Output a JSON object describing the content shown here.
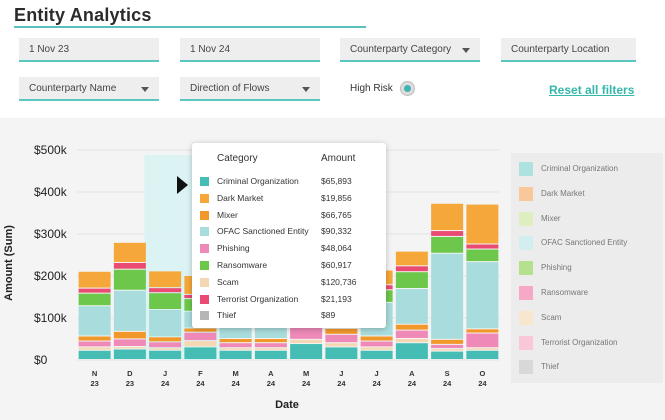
{
  "page": {
    "title": "Entity Analytics"
  },
  "filters": {
    "start_date": "1 Nov 23",
    "end_date": "1 Nov 24",
    "counterparty_category": "Counterparty Category",
    "counterparty_location": "Counterparty Location",
    "counterparty_name": "Counterparty Name",
    "direction_of_flows": "Direction of Flows",
    "high_risk_label": "High Risk",
    "high_risk_on": true,
    "reset_label": "Reset all filters"
  },
  "colors": {
    "accent": "#5cc6c0",
    "reset_link": "#35b7aa",
    "Criminal Organization": "#45bdb5",
    "Dark Market": "#f5a73a",
    "Mixer": "#f2972a",
    "OFAC Sanctioned Entity": "#a9dcdc",
    "Phishing": "#ee89b8",
    "Ransomware": "#6cc74a",
    "Scam": "#f5d7b3",
    "Terrorist Organization": "#ea4b72",
    "Thief": "#b5b5b5"
  },
  "tooltip": {
    "category_header": "Category",
    "amount_header": "Amount",
    "rows": [
      {
        "category": "Criminal Organization",
        "amount": "$65,893"
      },
      {
        "category": "Dark Market",
        "amount": "$19,856"
      },
      {
        "category": "Mixer",
        "amount": "$66,765"
      },
      {
        "category": "OFAC Sanctioned Entity",
        "amount": "$90,332"
      },
      {
        "category": "Phishing",
        "amount": "$48,064"
      },
      {
        "category": "Ransomware",
        "amount": "$60,917"
      },
      {
        "category": "Scam",
        "amount": "$120,736"
      },
      {
        "category": "Terrorist Organization",
        "amount": "$21,193"
      },
      {
        "category": "Thief",
        "amount": "$89"
      }
    ]
  },
  "legend": {
    "items": [
      {
        "label": "Criminal Organization",
        "color": "#aee2df"
      },
      {
        "label": "Dark Market",
        "color": "#f8c89a"
      },
      {
        "label": "Mixer",
        "color": "#dfeec0"
      },
      {
        "label": "OFAC Sanctioned Entity",
        "color": "#d3eeef"
      },
      {
        "label": "Phishing",
        "color": "#b5e08d"
      },
      {
        "label": "Ransomware",
        "color": "#f7a8c6"
      },
      {
        "label": "Scam",
        "color": "#f9e6cf"
      },
      {
        "label": "Terrorist Organization",
        "color": "#f9c7d5"
      },
      {
        "label": "Thief",
        "color": "#d8d8d8"
      }
    ]
  },
  "chart_data": {
    "type": "bar",
    "stacked": true,
    "xlabel": "Date",
    "ylabel": "Amount (Sum)",
    "ylim": [
      0,
      500000
    ],
    "yticks": [
      "$0",
      "$100k",
      "$200k",
      "$300k",
      "$400k",
      "$500k"
    ],
    "categories": [
      [
        "N",
        "23"
      ],
      [
        "D",
        "23"
      ],
      [
        "J",
        "24"
      ],
      [
        "F",
        "24"
      ],
      [
        "M",
        "24"
      ],
      [
        "A",
        "24"
      ],
      [
        "M",
        "24"
      ],
      [
        "J",
        "24"
      ],
      [
        "J",
        "24"
      ],
      [
        "A",
        "24"
      ],
      [
        "S",
        "24"
      ],
      [
        "O",
        "24"
      ]
    ],
    "highlighted_index": 3,
    "series": [
      {
        "name": "Criminal Organization",
        "values": [
          22000,
          25000,
          22000,
          30000,
          22000,
          22000,
          38000,
          30000,
          22000,
          40000,
          20000,
          22000
        ]
      },
      {
        "name": "Scam",
        "values": [
          8000,
          6000,
          6000,
          15000,
          6000,
          6000,
          10000,
          10000,
          8000,
          10000,
          6000,
          6000
        ]
      },
      {
        "name": "Phishing",
        "values": [
          14000,
          18000,
          14000,
          20000,
          12000,
          12000,
          30000,
          20000,
          14000,
          20000,
          10000,
          35000
        ]
      },
      {
        "name": "Mixer",
        "values": [
          12000,
          18000,
          12000,
          10000,
          10000,
          10000,
          14000,
          14000,
          12000,
          14000,
          12000,
          10000
        ]
      },
      {
        "name": "OFAC Sanctioned Entity",
        "values": [
          72000,
          98000,
          65000,
          40000,
          60000,
          60000,
          90000,
          90000,
          80000,
          85000,
          205000,
          160000
        ]
      },
      {
        "name": "Ransomware",
        "values": [
          30000,
          50000,
          40000,
          30000,
          30000,
          30000,
          32000,
          40000,
          30000,
          40000,
          40000,
          30000
        ]
      },
      {
        "name": "Terrorist Organization",
        "values": [
          12000,
          16000,
          12000,
          10000,
          12000,
          12000,
          14000,
          14000,
          12000,
          14000,
          14000,
          12000
        ]
      },
      {
        "name": "Dark Market",
        "values": [
          40000,
          48000,
          40000,
          45000,
          40000,
          40000,
          50000,
          40000,
          35000,
          35000,
          65000,
          95000
        ]
      }
    ]
  }
}
